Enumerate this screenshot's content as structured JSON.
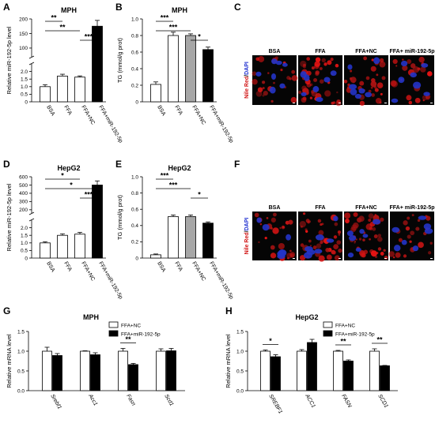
{
  "panel_labels": [
    "A",
    "B",
    "C",
    "D",
    "E",
    "F",
    "G",
    "H"
  ],
  "chart_data": [
    {
      "panel": "A",
      "type": "bar",
      "title": "MPH",
      "ylabel": "Relative miR-192-5p level",
      "categories": [
        "BSA",
        "FFA",
        "FFA+NC",
        "FFA+miR-192-5p"
      ],
      "values": [
        1.0,
        1.7,
        1.63,
        175
      ],
      "errors": [
        0.13,
        0.12,
        0.08,
        20
      ],
      "colors": [
        "#ffffff",
        "#ffffff",
        "#ffffff",
        "#000000"
      ],
      "broken_axis": true,
      "lower_range": [
        0,
        2.5
      ],
      "lower_ticks": [
        0,
        0.5,
        1.0,
        1.5,
        2.0
      ],
      "upper_range": [
        70,
        200
      ],
      "upper_ticks": [
        100,
        150,
        200
      ],
      "ytick_labels": [
        "0",
        "0.5",
        "1.0",
        "1.5",
        "2.0",
        "100",
        "150",
        "200"
      ],
      "significance": [
        {
          "from": 0,
          "to": 1,
          "label": "**"
        },
        {
          "from": 0,
          "to": 2,
          "label": "**"
        },
        {
          "from": 2,
          "to": 3,
          "label": "***"
        }
      ]
    },
    {
      "panel": "B",
      "type": "bar",
      "title": "MPH",
      "ylabel": "TG (mmol/g prot)",
      "categories": [
        "BSA",
        "FFA",
        "FFA+NC",
        "FFA+miR-192-5p"
      ],
      "values": [
        0.21,
        0.8,
        0.8,
        0.63
      ],
      "errors": [
        0.03,
        0.04,
        0.02,
        0.03
      ],
      "colors": [
        "#ffffff",
        "#ffffff",
        "#a6a6a6",
        "#000000"
      ],
      "ylim": [
        0,
        1.0
      ],
      "yticks": [
        0,
        0.2,
        0.4,
        0.6,
        0.8,
        1.0
      ],
      "ytick_labels": [
        "0",
        "0.2",
        "0.4",
        "0.6",
        "0.8",
        "1.0"
      ],
      "significance": [
        {
          "from": 0,
          "to": 1,
          "label": "***"
        },
        {
          "from": 0,
          "to": 2,
          "label": "***"
        },
        {
          "from": 2,
          "to": 3,
          "label": "*"
        }
      ]
    },
    {
      "panel": "D",
      "type": "bar",
      "title": "HepG2",
      "ylabel": "Relative miR-192-5p level",
      "categories": [
        "BSA",
        "FFA",
        "FFA+NC",
        "FFA+miR-192-5p"
      ],
      "values": [
        1.0,
        1.5,
        1.58,
        500
      ],
      "errors": [
        0.08,
        0.1,
        0.12,
        50
      ],
      "colors": [
        "#ffffff",
        "#ffffff",
        "#ffffff",
        "#000000"
      ],
      "broken_axis": true,
      "lower_range": [
        0,
        2.5
      ],
      "lower_ticks": [
        0,
        0.5,
        1.0,
        1.5,
        2.0
      ],
      "upper_range": [
        160,
        600
      ],
      "upper_ticks": [
        200,
        300,
        400,
        500,
        600
      ],
      "ytick_labels": [
        "0",
        "0.5",
        "1.0",
        "1.5",
        "2.0",
        "200",
        "300",
        "400",
        "500",
        "600"
      ],
      "significance": [
        {
          "from": 0,
          "to": 2,
          "label": "*"
        },
        {
          "from": 0,
          "to": 3,
          "label": "*"
        },
        {
          "from": 2,
          "to": 3,
          "label": "***"
        }
      ]
    },
    {
      "panel": "E",
      "type": "bar",
      "title": "HepG2",
      "ylabel": "TG (mmol/g prot)",
      "categories": [
        "BSA",
        "FFA",
        "FFA+NC",
        "FFA+miR-192-5p"
      ],
      "values": [
        0.04,
        0.51,
        0.51,
        0.43
      ],
      "errors": [
        0.01,
        0.02,
        0.02,
        0.015
      ],
      "colors": [
        "#ffffff",
        "#ffffff",
        "#a6a6a6",
        "#000000"
      ],
      "ylim": [
        0,
        1.0
      ],
      "yticks": [
        0,
        0.2,
        0.4,
        0.6,
        0.8,
        1.0
      ],
      "ytick_labels": [
        "0",
        "0.2",
        "0.4",
        "0.6",
        "0.8",
        "1.0"
      ],
      "significance": [
        {
          "from": 0,
          "to": 1,
          "label": "***"
        },
        {
          "from": 0,
          "to": 2,
          "label": "***"
        },
        {
          "from": 2,
          "to": 3,
          "label": "*"
        }
      ]
    },
    {
      "panel": "G",
      "type": "bar",
      "title": "MPH",
      "ylabel": "Relative mRNA level",
      "categories": [
        "Srebf1",
        "Acc1",
        "Fasn",
        "Scd1"
      ],
      "italic_categories": true,
      "series": [
        {
          "name": "FFA+NC",
          "color": "#ffffff",
          "values": [
            1.0,
            1.0,
            1.0,
            1.0
          ],
          "errors": [
            0.1,
            0.01,
            0.07,
            0.06
          ]
        },
        {
          "name": "FFA+miR-192-5p",
          "color": "#000000",
          "values": [
            0.89,
            0.91,
            0.66,
            1.01
          ],
          "errors": [
            0.05,
            0.05,
            0.03,
            0.06
          ]
        }
      ],
      "ylim": [
        0,
        1.5
      ],
      "yticks": [
        0,
        0.5,
        1.0,
        1.5
      ],
      "ytick_labels": [
        "0.0",
        "0.5",
        "1.0",
        "1.5"
      ],
      "legend_position": "top-right",
      "significance": [
        {
          "category": 2,
          "label": "**"
        }
      ]
    },
    {
      "panel": "H",
      "type": "bar",
      "title": "HepG2",
      "ylabel": "Relative mRNA level",
      "categories": [
        "SREBF1",
        "ACC1",
        "FASN",
        "SCD1"
      ],
      "italic_categories": true,
      "series": [
        {
          "name": "FFA+NC",
          "color": "#ffffff",
          "values": [
            1.0,
            1.0,
            1.0,
            1.0
          ],
          "errors": [
            0.03,
            0.04,
            0.02,
            0.06
          ]
        },
        {
          "name": "FFA+miR-192-5p",
          "color": "#000000",
          "values": [
            0.86,
            1.22,
            0.75,
            0.63
          ],
          "errors": [
            0.05,
            0.08,
            0.03,
            0.01
          ]
        }
      ],
      "ylim": [
        0,
        1.5
      ],
      "yticks": [
        0,
        0.5,
        1.0,
        1.5
      ],
      "ytick_labels": [
        "0.0",
        "0.5",
        "1.0",
        "1.5"
      ],
      "legend_position": "top-right",
      "significance": [
        {
          "category": 0,
          "label": "*"
        },
        {
          "category": 2,
          "label": "**"
        },
        {
          "category": 3,
          "label": "**"
        }
      ]
    }
  ],
  "micrographs": [
    {
      "panel": "C",
      "side_label_red": "Nile Red",
      "side_label_sep": "/",
      "side_label_blue": "DAPI",
      "columns": [
        "BSA",
        "FFA",
        "FFA+NC",
        "FFA+ miR-192-5p"
      ],
      "red_intensity": [
        0.35,
        0.85,
        0.6,
        0.4
      ]
    },
    {
      "panel": "F",
      "side_label_red": "Nile Red",
      "side_label_sep": "/",
      "side_label_blue": "DAPI",
      "columns": [
        "BSA",
        "FFA",
        "FFA+NC",
        "FFA+ miR-192-5p"
      ],
      "red_intensity": [
        0.4,
        0.8,
        0.9,
        0.35
      ]
    }
  ]
}
